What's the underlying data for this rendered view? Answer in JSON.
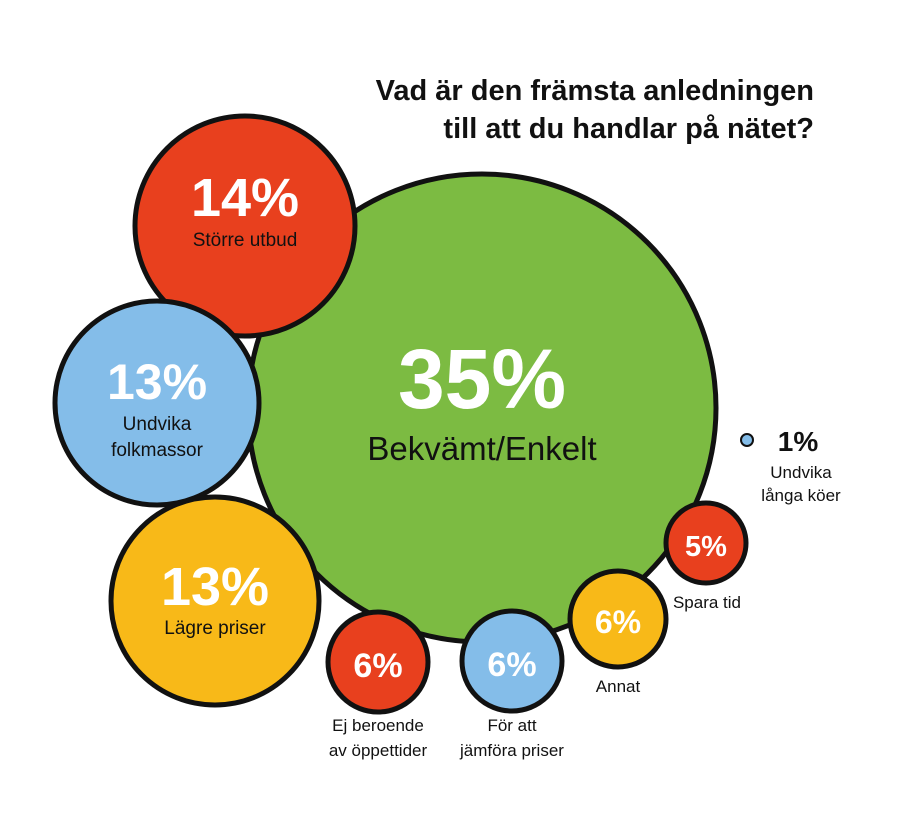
{
  "chart_data": {
    "type": "bubble",
    "title": [
      "Vad är den främsta anledningen",
      "till att du handlar på nätet?"
    ],
    "colors": {
      "green": "#7cbb42",
      "red": "#e8401e",
      "blue": "#84bde9",
      "yellow": "#f8b918"
    },
    "items": [
      {
        "value": 35,
        "value_label": "35%",
        "label": [
          "Bekvämt/Enkelt"
        ],
        "color": "green"
      },
      {
        "value": 14,
        "value_label": "14%",
        "label": [
          "Större utbud"
        ],
        "color": "red"
      },
      {
        "value": 13,
        "value_label": "13%",
        "label": [
          "Undvika",
          "folkmassor"
        ],
        "color": "blue"
      },
      {
        "value": 13,
        "value_label": "13%",
        "label": [
          "Lägre priser"
        ],
        "color": "yellow"
      },
      {
        "value": 6,
        "value_label": "6%",
        "label": [
          "Ej beroende",
          "av öppettider"
        ],
        "color": "red"
      },
      {
        "value": 6,
        "value_label": "6%",
        "label": [
          "För att",
          "jämföra priser"
        ],
        "color": "blue"
      },
      {
        "value": 6,
        "value_label": "6%",
        "label": [
          "Annat"
        ],
        "color": "yellow"
      },
      {
        "value": 5,
        "value_label": "5%",
        "label": [
          "Spara tid"
        ],
        "color": "red"
      },
      {
        "value": 1,
        "value_label": "1%",
        "label": [
          "Undvika",
          "långa köer"
        ],
        "color": "blue"
      }
    ]
  }
}
